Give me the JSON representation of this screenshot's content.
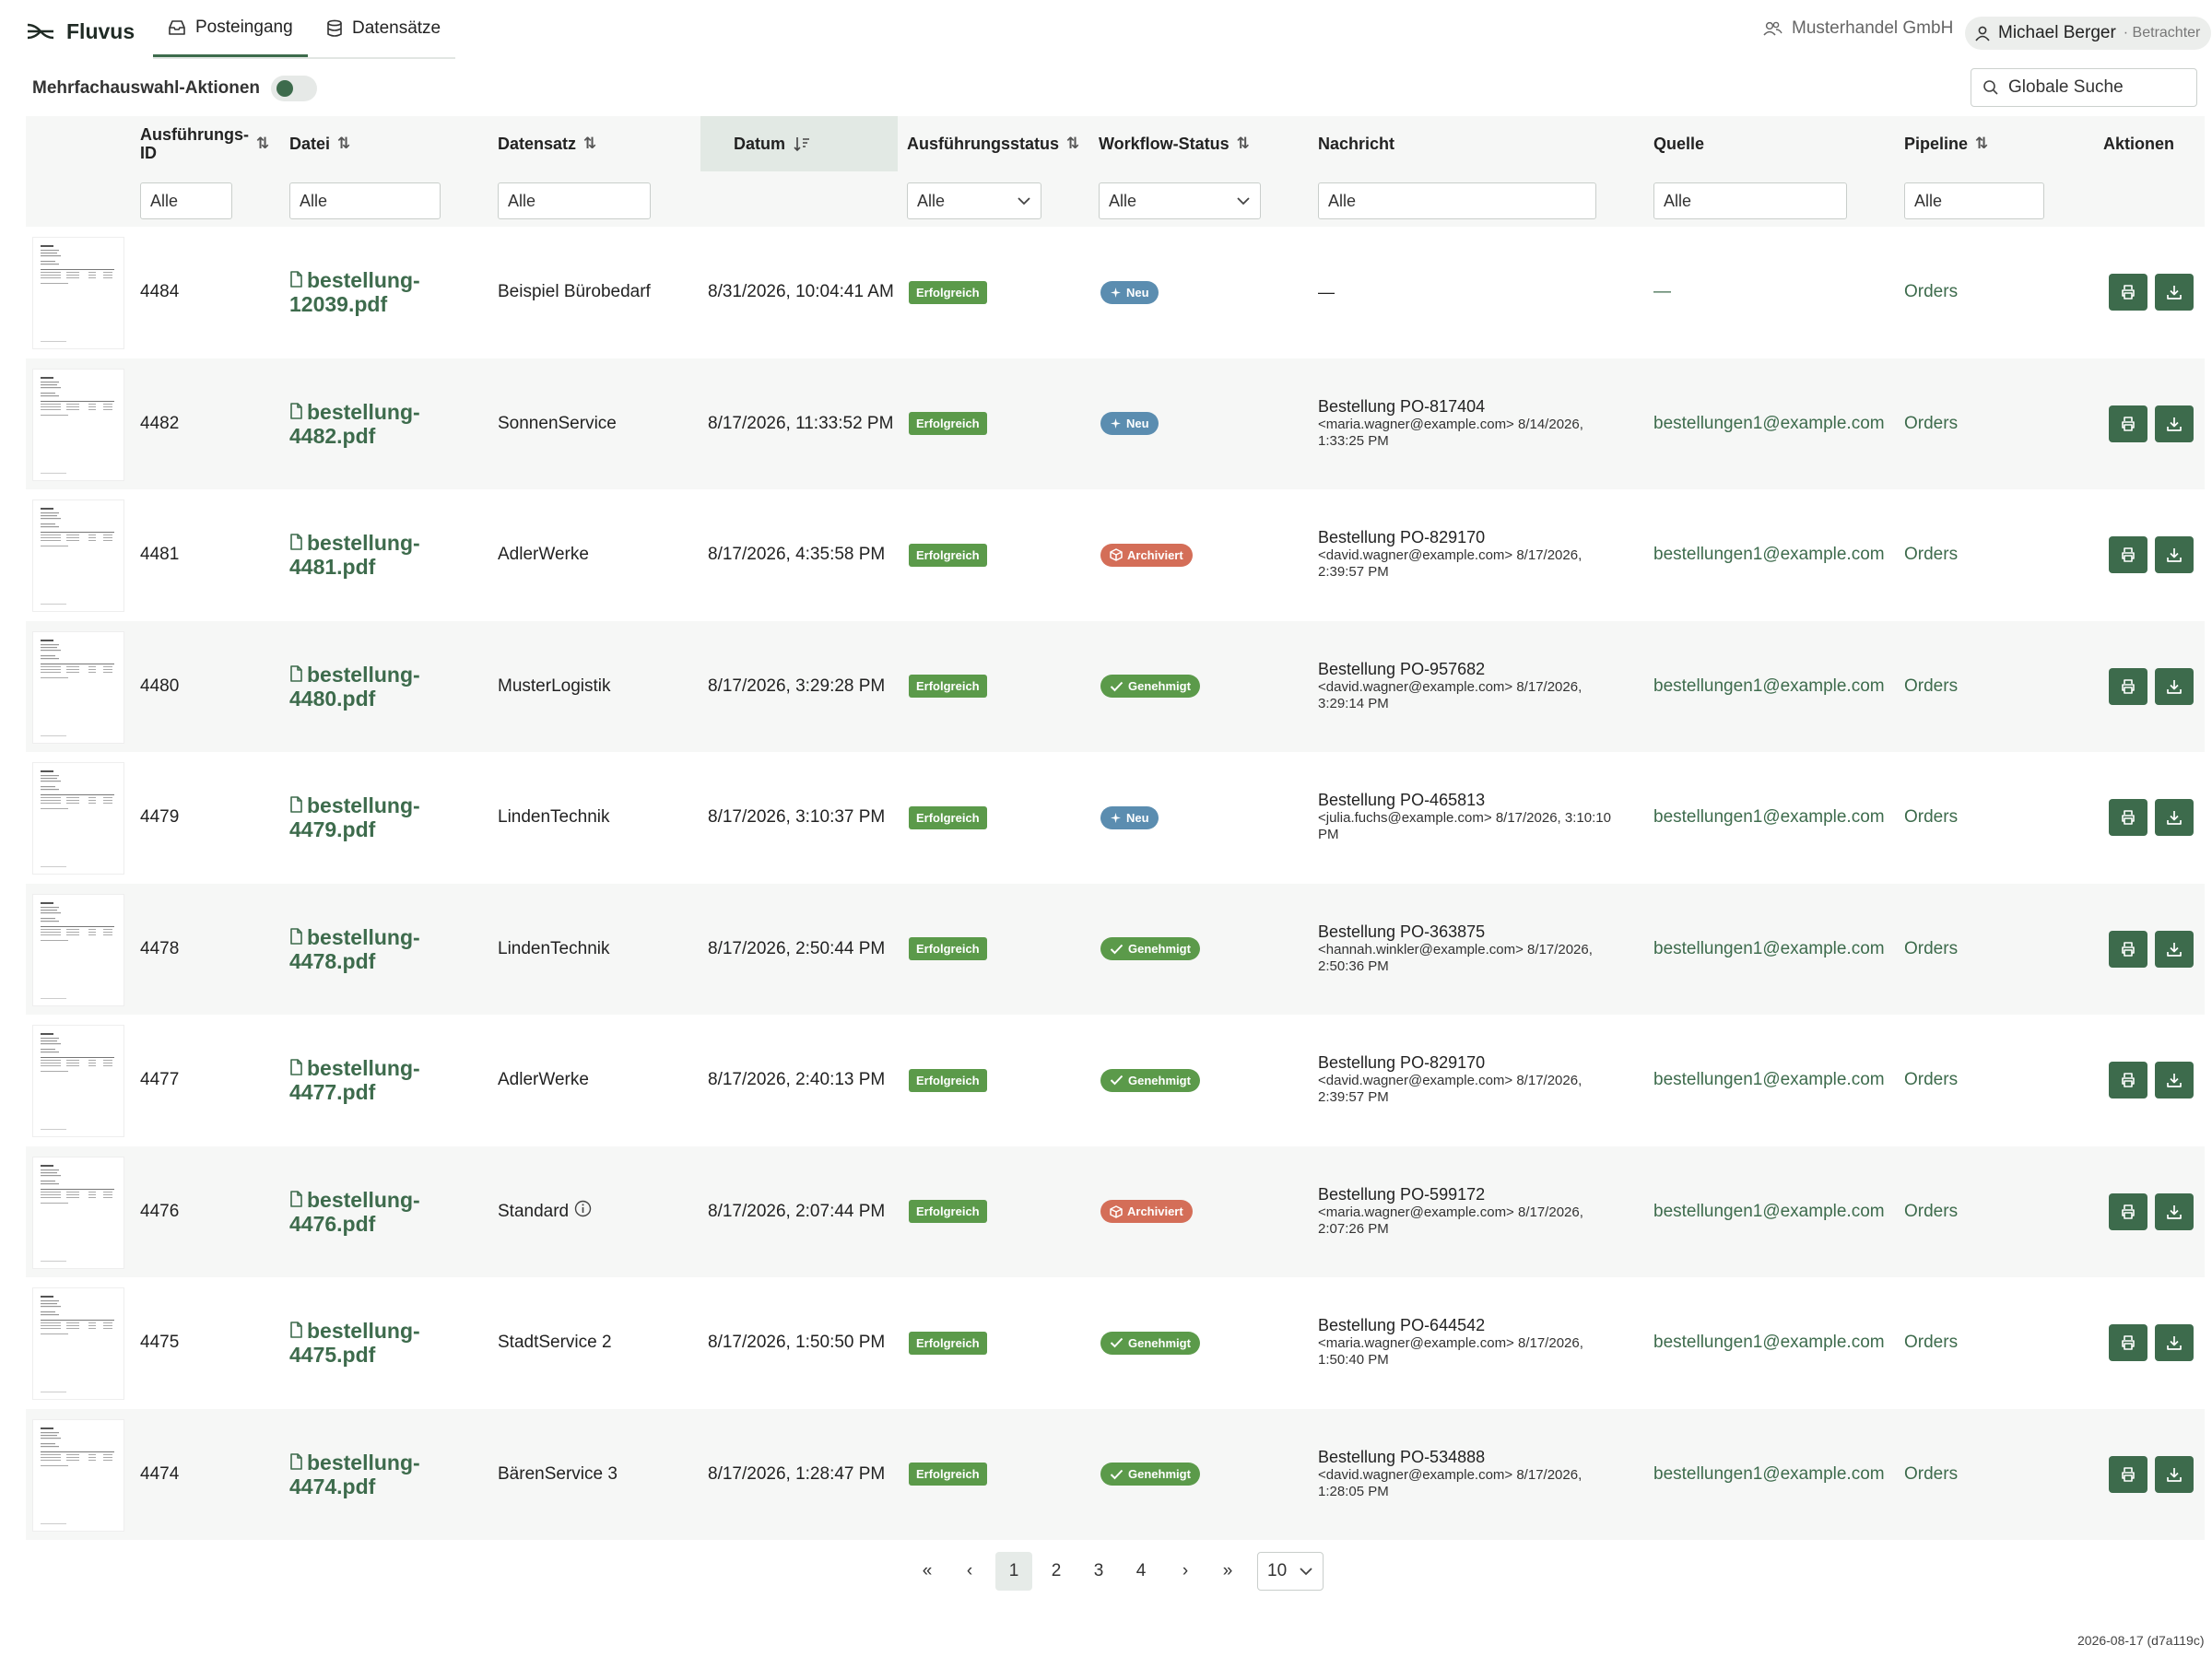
{
  "app": {
    "name": "Fluvus",
    "tabs": [
      {
        "label": "Posteingang",
        "active": true
      },
      {
        "label": "Datensätze",
        "active": false
      }
    ],
    "company": "Musterhandel GmbH",
    "user": {
      "name": "Michael Berger",
      "role": "· Betrachter"
    }
  },
  "toolbar": {
    "multi_label": "Mehrfachauswahl-Aktionen",
    "search_placeholder": "Globale Suche"
  },
  "table": {
    "headers": {
      "id": "Ausführungs-ID",
      "id_line1": "Ausführungs-",
      "id_line2": "ID",
      "file": "Datei",
      "dataset": "Datensatz",
      "date": "Datum",
      "exec_status": "Ausführungsstatus",
      "wf_status": "Workflow-Status",
      "message": "Nachricht",
      "source": "Quelle",
      "pipeline": "Pipeline",
      "actions": "Aktionen"
    },
    "filter_all": "Alle",
    "rows": [
      {
        "id": "4484",
        "file1": "bestellung-",
        "file2": "12039.pdf",
        "dataset": "Beispiel Bürobedarf",
        "date": "8/31/2026, 10:04:41 AM",
        "exec": "Erfolgreich",
        "wf": "Neu",
        "wf_type": "neu",
        "msg_title": "—",
        "msg_sub": "",
        "source": "—",
        "pipeline": "Orders"
      },
      {
        "id": "4482",
        "file1": "bestellung-",
        "file2": "4482.pdf",
        "dataset": "SonnenService",
        "date": "8/17/2026, 11:33:52 PM",
        "exec": "Erfolgreich",
        "wf": "Neu",
        "wf_type": "neu",
        "msg_title": "Bestellung PO-817404",
        "msg_sub": "<maria.wagner@example.com> 8/14/2026, 1:33:25 PM",
        "source": "bestellungen1@example.com",
        "pipeline": "Orders"
      },
      {
        "id": "4481",
        "file1": "bestellung-",
        "file2": "4481.pdf",
        "dataset": "AdlerWerke",
        "date": "8/17/2026, 4:35:58 PM",
        "exec": "Erfolgreich",
        "wf": "Archiviert",
        "wf_type": "arc",
        "msg_title": "Bestellung PO-829170",
        "msg_sub": "<david.wagner@example.com> 8/17/2026, 2:39:57 PM",
        "source": "bestellungen1@example.com",
        "pipeline": "Orders"
      },
      {
        "id": "4480",
        "file1": "bestellung-",
        "file2": "4480.pdf",
        "dataset": "MusterLogistik",
        "date": "8/17/2026, 3:29:28 PM",
        "exec": "Erfolgreich",
        "wf": "Genehmigt",
        "wf_type": "gen",
        "msg_title": "Bestellung PO-957682",
        "msg_sub": "<david.wagner@example.com> 8/17/2026, 3:29:14 PM",
        "source": "bestellungen1@example.com",
        "pipeline": "Orders"
      },
      {
        "id": "4479",
        "file1": "bestellung-",
        "file2": "4479.pdf",
        "dataset": "LindenTechnik",
        "date": "8/17/2026, 3:10:37 PM",
        "exec": "Erfolgreich",
        "wf": "Neu",
        "wf_type": "neu",
        "msg_title": "Bestellung PO-465813",
        "msg_sub": "<julia.fuchs@example.com> 8/17/2026, 3:10:10 PM",
        "source": "bestellungen1@example.com",
        "pipeline": "Orders"
      },
      {
        "id": "4478",
        "file1": "bestellung-",
        "file2": "4478.pdf",
        "dataset": "LindenTechnik",
        "date": "8/17/2026, 2:50:44 PM",
        "exec": "Erfolgreich",
        "wf": "Genehmigt",
        "wf_type": "gen",
        "msg_title": "Bestellung PO-363875",
        "msg_sub": "<hannah.winkler@example.com> 8/17/2026, 2:50:36 PM",
        "source": "bestellungen1@example.com",
        "pipeline": "Orders"
      },
      {
        "id": "4477",
        "file1": "bestellung-",
        "file2": "4477.pdf",
        "dataset": "AdlerWerke",
        "date": "8/17/2026, 2:40:13 PM",
        "exec": "Erfolgreich",
        "wf": "Genehmigt",
        "wf_type": "gen",
        "msg_title": "Bestellung PO-829170",
        "msg_sub": "<david.wagner@example.com> 8/17/2026, 2:39:57 PM",
        "source": "bestellungen1@example.com",
        "pipeline": "Orders"
      },
      {
        "id": "4476",
        "file1": "bestellung-",
        "file2": "4476.pdf",
        "dataset": "Standard",
        "info": true,
        "date": "8/17/2026, 2:07:44 PM",
        "exec": "Erfolgreich",
        "wf": "Archiviert",
        "wf_type": "arc",
        "msg_title": "Bestellung PO-599172",
        "msg_sub": "<maria.wagner@example.com> 8/17/2026, 2:07:26 PM",
        "source": "bestellungen1@example.com",
        "pipeline": "Orders"
      },
      {
        "id": "4475",
        "file1": "bestellung-",
        "file2": "4475.pdf",
        "dataset": "StadtService 2",
        "date": "8/17/2026, 1:50:50 PM",
        "exec": "Erfolgreich",
        "wf": "Genehmigt",
        "wf_type": "gen",
        "msg_title": "Bestellung PO-644542",
        "msg_sub": "<maria.wagner@example.com> 8/17/2026, 1:50:40 PM",
        "source": "bestellungen1@example.com",
        "pipeline": "Orders"
      },
      {
        "id": "4474",
        "file1": "bestellung-",
        "file2": "4474.pdf",
        "dataset": "BärenService 3",
        "date": "8/17/2026, 1:28:47 PM",
        "exec": "Erfolgreich",
        "wf": "Genehmigt",
        "wf_type": "gen",
        "msg_title": "Bestellung PO-534888",
        "msg_sub": "<david.wagner@example.com> 8/17/2026, 1:28:05 PM",
        "source": "bestellungen1@example.com",
        "pipeline": "Orders"
      }
    ]
  },
  "pagination": {
    "first": "«",
    "prev": "‹",
    "pages": [
      "1",
      "2",
      "3",
      "4"
    ],
    "current": "1",
    "next": "›",
    "last": "»",
    "page_size": "10"
  },
  "footer": {
    "version": "2026-08-17 (d7a119c)"
  },
  "colors": {
    "brand": "#3d6b4c",
    "success": "#5b9a4a",
    "info": "#5b8db0",
    "archived": "#d46e58"
  }
}
